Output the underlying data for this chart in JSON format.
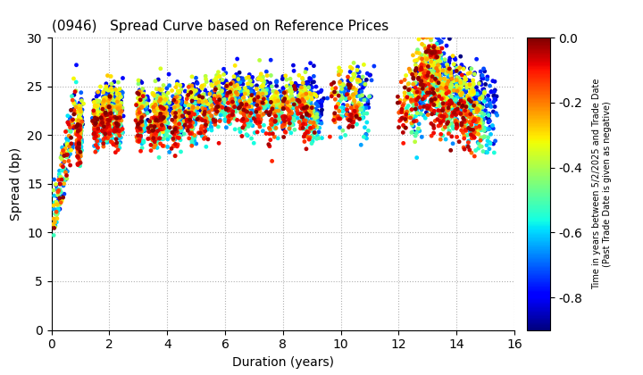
{
  "title": "(0946)   Spread Curve based on Reference Prices",
  "xlabel": "Duration (years)",
  "ylabel": "Spread (bp)",
  "colorbar_label": "Time in years between 5/2/2025 and Trade Date\n(Past Trade Date is given as negative)",
  "xlim": [
    0,
    16
  ],
  "ylim": [
    0,
    30
  ],
  "xticks": [
    0,
    2,
    4,
    6,
    8,
    10,
    12,
    14,
    16
  ],
  "yticks": [
    0,
    5,
    10,
    15,
    20,
    25,
    30
  ],
  "cmap": "jet",
  "vmin": -0.9,
  "vmax": 0.0,
  "colorbar_ticks": [
    0.0,
    -0.2,
    -0.4,
    -0.6,
    -0.8
  ],
  "marker_size": 12,
  "background_color": "#ffffff",
  "grid_color": "#b0b0b0",
  "grid_style": "dotted",
  "figsize": [
    7.2,
    4.2
  ],
  "dpi": 100
}
